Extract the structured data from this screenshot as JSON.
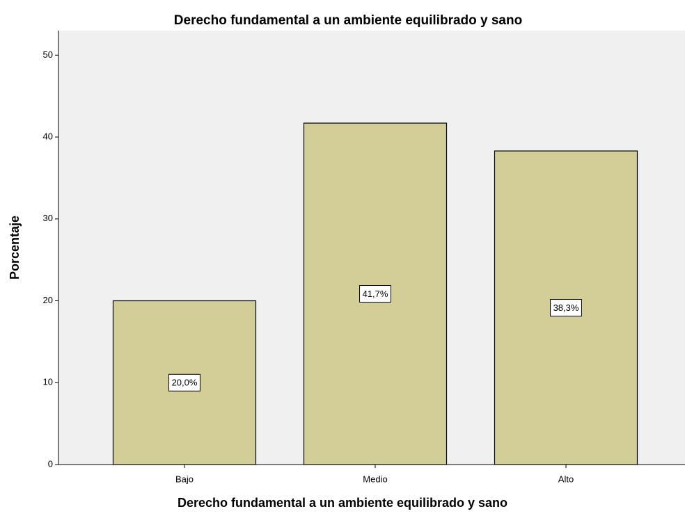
{
  "chart_data": {
    "type": "bar",
    "title": "Derecho fundamental a un ambiente equilibrado y sano",
    "x_label": "Derecho fundamental a un ambiente equilibrado y sano",
    "y_label": "Porcentaje",
    "categories": [
      "Bajo",
      "Medio",
      "Alto"
    ],
    "values": [
      20.0,
      41.7,
      38.3
    ],
    "value_labels": [
      "20,0%",
      "41,7%",
      "38,3%"
    ],
    "color": "#d3ce97",
    "ylim": [
      0,
      53
    ],
    "yticks": [
      0,
      10,
      20,
      30,
      40,
      50
    ],
    "grid": false
  }
}
